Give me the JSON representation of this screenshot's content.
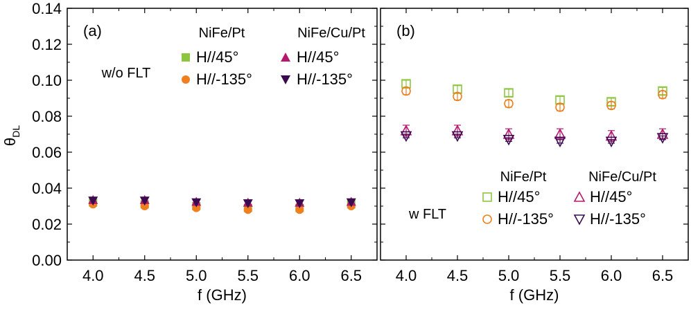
{
  "colors": {
    "nife_45": "#8cc63f",
    "nife_m135": "#f07f1e",
    "cu_45": "#b5196e",
    "cu_m135": "#3c0a50",
    "axis": "#000000"
  },
  "ylabel": "θ",
  "ylabel_sub": "DL",
  "chart_data": [
    {
      "type": "scatter",
      "panel_label": "(a)",
      "condition_label": "w/o FLT",
      "xlabel": "f (GHz)",
      "xlim": [
        3.75,
        6.75
      ],
      "ylim": [
        0.0,
        0.14
      ],
      "xticks": [
        "4.0",
        "4.5",
        "5.0",
        "5.5",
        "6.0",
        "6.5"
      ],
      "yticks": [
        "0.00",
        "0.02",
        "0.04",
        "0.06",
        "0.08",
        "0.10",
        "0.12",
        "0.14"
      ],
      "legend_groups": [
        {
          "heading": "NiFe/Pt",
          "entries": [
            "H//45°",
            "H//-135°"
          ]
        },
        {
          "heading": "NiFe/Cu/Pt",
          "entries": [
            "H//45°",
            "H//-135°"
          ]
        }
      ],
      "x": [
        4.0,
        4.5,
        5.0,
        5.5,
        6.0,
        6.5
      ],
      "series": [
        {
          "name": "NiFe/Pt H//45°",
          "marker": "square-filled",
          "color": "#8cc63f",
          "values": [
            0.032,
            0.031,
            0.03,
            0.029,
            0.029,
            0.031
          ]
        },
        {
          "name": "NiFe/Pt H//-135°",
          "marker": "circle-filled",
          "color": "#f07f1e",
          "values": [
            0.031,
            0.03,
            0.029,
            0.028,
            0.028,
            0.03
          ]
        },
        {
          "name": "NiFe/Cu/Pt H//45°",
          "marker": "triangle-up-filled",
          "color": "#b5196e",
          "values": [
            0.0335,
            0.0335,
            0.0325,
            0.032,
            0.032,
            0.0325
          ]
        },
        {
          "name": "NiFe/Cu/Pt H//-135°",
          "marker": "triangle-down-filled",
          "color": "#3c0a50",
          "values": [
            0.033,
            0.033,
            0.032,
            0.0315,
            0.0315,
            0.032
          ]
        }
      ]
    },
    {
      "type": "scatter",
      "panel_label": "(b)",
      "condition_label": "w FLT",
      "xlabel": "f (GHz)",
      "xlim": [
        3.75,
        6.75
      ],
      "ylim": [
        0.0,
        0.14
      ],
      "xticks": [
        "4.0",
        "4.5",
        "5.0",
        "5.5",
        "6.0",
        "6.5"
      ],
      "yticks": [],
      "legend_groups": [
        {
          "heading": "NiFe/Pt",
          "entries": [
            "H//45°",
            "H//-135°"
          ]
        },
        {
          "heading": "NiFe/Cu/Pt",
          "entries": [
            "H//45°",
            "H//-135°"
          ]
        }
      ],
      "x": [
        4.0,
        4.5,
        5.0,
        5.5,
        6.0,
        6.5
      ],
      "series": [
        {
          "name": "NiFe/Pt H//45°",
          "marker": "square-open",
          "color": "#8cc63f",
          "values": [
            0.098,
            0.095,
            0.093,
            0.089,
            0.088,
            0.094
          ],
          "error": 0.002
        },
        {
          "name": "NiFe/Pt H//-135°",
          "marker": "circle-open",
          "color": "#f07f1e",
          "values": [
            0.094,
            0.091,
            0.087,
            0.085,
            0.086,
            0.092
          ],
          "error": 0.002
        },
        {
          "name": "NiFe/Cu/Pt H//45°",
          "marker": "triangle-up-open",
          "color": "#b5196e",
          "values": [
            0.072,
            0.072,
            0.07,
            0.07,
            0.069,
            0.07
          ],
          "error": 0.003
        },
        {
          "name": "NiFe/Cu/Pt H//-135°",
          "marker": "triangle-down-open",
          "color": "#3c0a50",
          "values": [
            0.069,
            0.069,
            0.067,
            0.066,
            0.066,
            0.068
          ],
          "error": 0.001
        }
      ]
    }
  ]
}
